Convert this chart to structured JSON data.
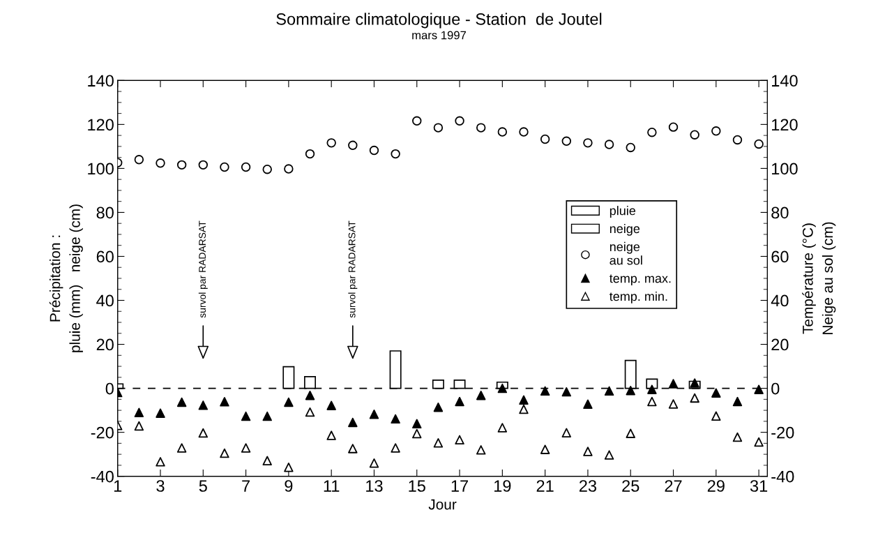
{
  "chart_data": {
    "type": "bar",
    "title": "Sommaire climatologique - Station  de Joutel",
    "subtitle": "mars 1997",
    "xlabel": "Jour",
    "ylabel": "Précipitation :\npluie (mm)   neige (cm)",
    "y2label": "Température (°C)\nNeige au sol (cm)",
    "x": [
      1,
      2,
      3,
      4,
      5,
      6,
      7,
      8,
      9,
      10,
      11,
      12,
      13,
      14,
      15,
      16,
      17,
      18,
      19,
      20,
      21,
      22,
      23,
      24,
      25,
      26,
      27,
      28,
      29,
      30,
      31
    ],
    "series": [
      {
        "name": "pluie",
        "type": "bar",
        "color": "#ffffff",
        "values": [
          null,
          null,
          null,
          null,
          null,
          null,
          null,
          null,
          null,
          null,
          null,
          null,
          null,
          null,
          null,
          null,
          null,
          null,
          null,
          null,
          null,
          null,
          null,
          null,
          null,
          4.2,
          null,
          3.2,
          null,
          null,
          null
        ]
      },
      {
        "name": "neige",
        "color": "#ffffff",
        "values": [
          2,
          null,
          null,
          null,
          null,
          null,
          null,
          null,
          9.8,
          5.3,
          null,
          null,
          null,
          17,
          null,
          3.7,
          3.7,
          null,
          2.8,
          null,
          null,
          null,
          null,
          null,
          12.7,
          null,
          null,
          null,
          null,
          null,
          null
        ]
      },
      {
        "name": "neige\nau sol",
        "type": "scatter",
        "axis": "y2",
        "marker": "circle",
        "color": "#ffffff",
        "values": [
          102.6,
          104,
          102.4,
          101.6,
          101.6,
          100.6,
          100.6,
          99.6,
          99.8,
          106.6,
          111.6,
          110.5,
          108.2,
          106.6,
          121.6,
          118.5,
          121.6,
          118.5,
          116.6,
          116.6,
          113.3,
          112.4,
          111.6,
          110.9,
          109.5,
          116.4,
          118.8,
          115.3,
          117,
          113,
          111.1
        ]
      },
      {
        "name": "temp. max.",
        "type": "scatter",
        "axis": "y2",
        "marker": "triangle",
        "color": "#000000",
        "values": [
          -1.9,
          -11,
          -11.3,
          -6.3,
          -7.7,
          -6.1,
          -12.7,
          -12.7,
          -6.3,
          -3.2,
          -7.8,
          -15.5,
          -11.8,
          -13.9,
          -16.1,
          -8.6,
          -6,
          -3.2,
          0,
          -5.3,
          -1.2,
          -1.6,
          -7.2,
          -1.2,
          -1,
          -0.5,
          2.1,
          2.4,
          -2.1,
          -6,
          -0.5
        ]
      },
      {
        "name": "temp. min.",
        "type": "scatter",
        "axis": "y2",
        "marker": "triangle",
        "color": "#ffffff",
        "values": [
          -16.9,
          -17.1,
          -33.4,
          -27.1,
          -20.3,
          -29.5,
          -27.1,
          -32.9,
          -35.9,
          -10.8,
          -21.4,
          -27.4,
          -34,
          -27.1,
          -20.6,
          -24.8,
          -23.4,
          -28,
          -17.9,
          -9.5,
          -27.8,
          -20.2,
          -28.7,
          -30.3,
          -20.5,
          -6,
          -7.1,
          -4.4,
          -12.6,
          -22.2,
          -24.4
        ]
      }
    ],
    "xlim": [
      1,
      31.4
    ],
    "xticks": [
      1,
      3,
      5,
      7,
      9,
      11,
      13,
      15,
      17,
      19,
      21,
      23,
      25,
      27,
      29,
      31
    ],
    "ylim": [
      -40,
      140
    ],
    "yticks": [
      -40,
      -20,
      0,
      20,
      40,
      60,
      80,
      100,
      120,
      140
    ],
    "y2lim": [
      -40,
      140
    ],
    "y2ticks": [
      -40,
      -20,
      0,
      20,
      40,
      60,
      80,
      100,
      120,
      140
    ],
    "ref_lines": [
      {
        "axis": "y",
        "value": 0,
        "color": "#000000",
        "line_style": "dashed"
      }
    ],
    "annotations": [
      {
        "text": "survol par RADARSAT",
        "x": 5
      },
      {
        "text": "survol par RADARSAT",
        "x": 12
      }
    ],
    "grid": false,
    "legend": "center right"
  }
}
